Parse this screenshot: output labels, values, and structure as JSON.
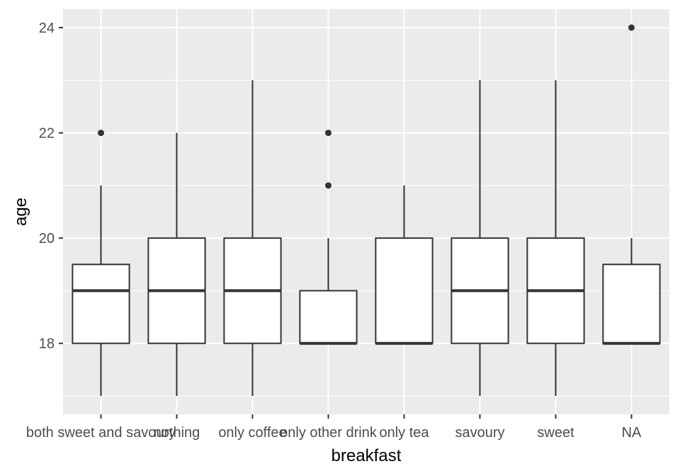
{
  "chart_data": {
    "type": "boxplot",
    "xlabel": "breakfast",
    "ylabel": "age",
    "ylim": [
      16.65,
      24.35
    ],
    "yticks": [
      18,
      20,
      22,
      24
    ],
    "grid": true,
    "legend": "none",
    "colors": {
      "panel": "#ebebeb",
      "gridline": "#ffffff",
      "box_fill": "#ffffff",
      "box_stroke": "#333333",
      "outlier": "#333333",
      "tick_label": "#4d4d4d"
    },
    "categories": [
      "both sweet and savoury",
      "nothing",
      "only coffee",
      "only other drink",
      "only tea",
      "savoury",
      "sweet",
      "NA"
    ],
    "boxes": [
      {
        "category": "both sweet and savoury",
        "lower_whisker": 17,
        "q1": 18,
        "median": 19,
        "q3": 19.5,
        "upper_whisker": 21,
        "outliers": [
          22
        ]
      },
      {
        "category": "nothing",
        "lower_whisker": 17,
        "q1": 18,
        "median": 19,
        "q3": 20,
        "upper_whisker": 22,
        "outliers": []
      },
      {
        "category": "only coffee",
        "lower_whisker": 17,
        "q1": 18,
        "median": 19,
        "q3": 20,
        "upper_whisker": 23,
        "outliers": []
      },
      {
        "category": "only other drink",
        "lower_whisker": 18,
        "q1": 18,
        "median": 18,
        "q3": 19,
        "upper_whisker": 20,
        "outliers": [
          21,
          22
        ]
      },
      {
        "category": "only tea",
        "lower_whisker": 18,
        "q1": 18,
        "median": 18,
        "q3": 20,
        "upper_whisker": 21,
        "outliers": []
      },
      {
        "category": "savoury",
        "lower_whisker": 17,
        "q1": 18,
        "median": 19,
        "q3": 20,
        "upper_whisker": 23,
        "outliers": []
      },
      {
        "category": "sweet",
        "lower_whisker": 17,
        "q1": 18,
        "median": 19,
        "q3": 20,
        "upper_whisker": 23,
        "outliers": []
      },
      {
        "category": "NA",
        "lower_whisker": 18,
        "q1": 18,
        "median": 18,
        "q3": 19.5,
        "upper_whisker": 20,
        "outliers": [
          24
        ]
      }
    ]
  }
}
